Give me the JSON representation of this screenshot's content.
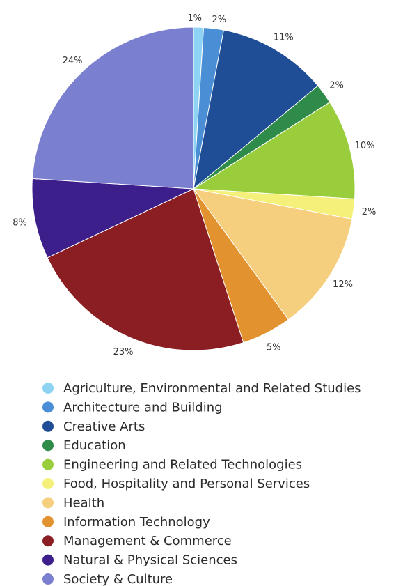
{
  "chart_data": {
    "type": "pie",
    "title": "",
    "legend_position": "bottom",
    "slices": [
      {
        "label": "Agriculture, Environmental and Related Studies",
        "value": 1,
        "display": "1%",
        "color": "#8fd3f4"
      },
      {
        "label": "Architecture and Building",
        "value": 2,
        "display": "2%",
        "color": "#4a8fd6"
      },
      {
        "label": "Creative Arts",
        "value": 11,
        "display": "11%",
        "color": "#1f4e96"
      },
      {
        "label": "Education",
        "value": 2,
        "display": "2%",
        "color": "#2e8b4a"
      },
      {
        "label": "Engineering and Related Technologies",
        "value": 10,
        "display": "10%",
        "color": "#9acd3c"
      },
      {
        "label": "Food, Hospitality and Personal Services",
        "value": 2,
        "display": "2%",
        "color": "#f5f07a"
      },
      {
        "label": "Health",
        "value": 12,
        "display": "12%",
        "color": "#f6cf7e"
      },
      {
        "label": "Information Technology",
        "value": 5,
        "display": "5%",
        "color": "#e2922e"
      },
      {
        "label": "Management & Commerce",
        "value": 23,
        "display": "23%",
        "color": "#8b1e22"
      },
      {
        "label": "Natural & Physical Sciences",
        "value": 8,
        "display": "8%",
        "color": "#3d1f8c"
      },
      {
        "label": "Society & Culture",
        "value": 24,
        "display": "24%",
        "color": "#7b7fcf"
      }
    ]
  }
}
